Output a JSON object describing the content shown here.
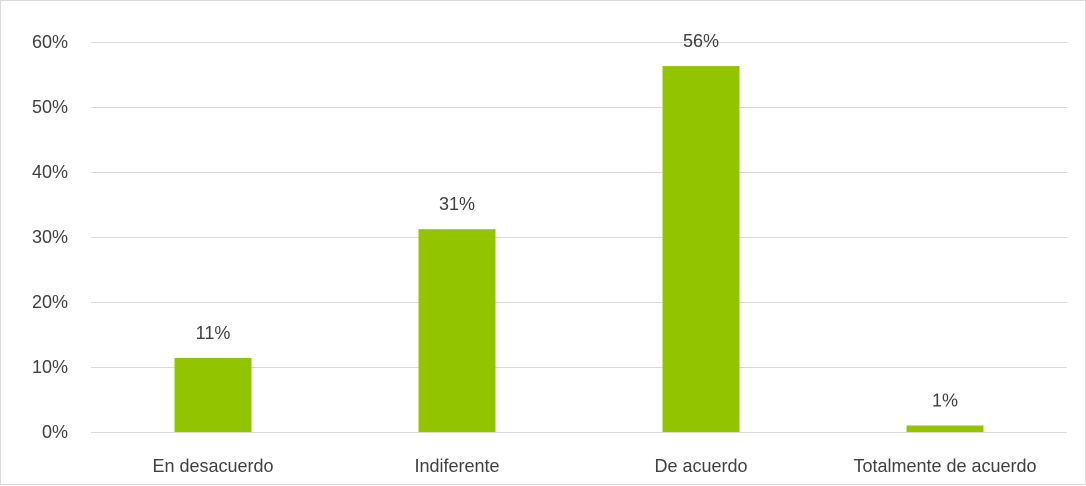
{
  "chart_data": {
    "type": "bar",
    "categories": [
      "En desacuerdo",
      "Indiferente",
      "De acuerdo",
      "Totalmente de acuerdo"
    ],
    "values": [
      11.4,
      31.2,
      56.3,
      1.0
    ],
    "data_labels": [
      "11%",
      "31%",
      "56%",
      "1%"
    ],
    "y_ticks": [
      0,
      10,
      20,
      30,
      40,
      50,
      60
    ],
    "y_tick_labels": [
      "0%",
      "10%",
      "20%",
      "30%",
      "40%",
      "50%",
      "60%"
    ],
    "ylim": [
      0,
      60
    ],
    "title": "",
    "xlabel": "",
    "ylabel": "",
    "grid": true,
    "legend": "none",
    "bar_color": "#92c400",
    "grid_color": "#d9d9d9",
    "text_color": "#404040"
  }
}
